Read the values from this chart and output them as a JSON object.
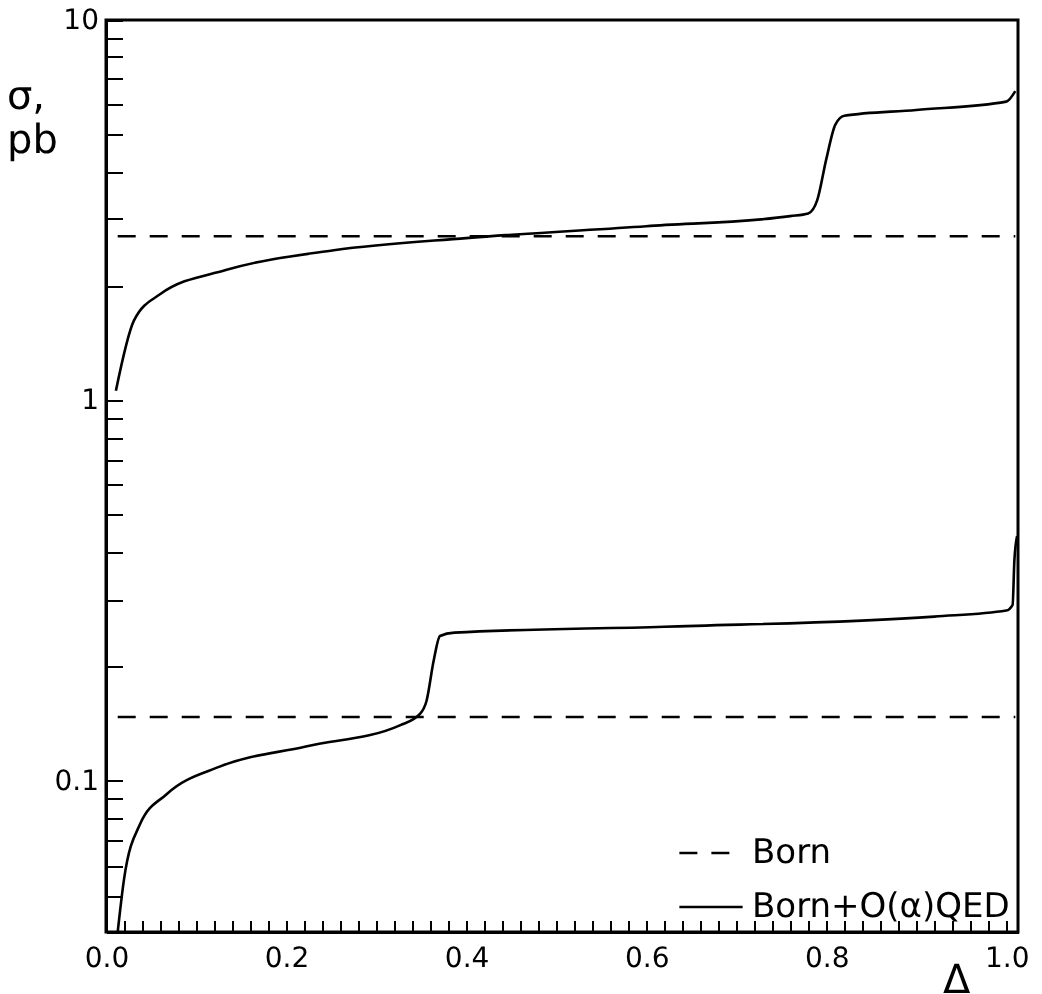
{
  "chart_data": {
    "type": "line",
    "xlabel": "Δ",
    "ylabel": "σ,\npb",
    "xlim": [
      0,
      1.013
    ],
    "ylim": [
      0.04,
      10
    ],
    "log": "y",
    "grid": false,
    "legend": "bottom right",
    "marker": "none",
    "xticks": [
      {
        "value": 0,
        "label": "0.0"
      },
      {
        "value": 0.02,
        "label": null
      },
      {
        "value": 0.04,
        "label": null
      },
      {
        "value": 0.06,
        "label": null
      },
      {
        "value": 0.08,
        "label": null
      },
      {
        "value": 0.1,
        "label": null
      },
      {
        "value": 0.12,
        "label": null
      },
      {
        "value": 0.14,
        "label": null
      },
      {
        "value": 0.16,
        "label": null
      },
      {
        "value": 0.18,
        "label": null
      },
      0.2,
      {
        "value": 0.22,
        "label": null
      },
      {
        "value": 0.24,
        "label": null
      },
      {
        "value": 0.26,
        "label": null
      },
      {
        "value": 0.28,
        "label": null
      },
      {
        "value": 0.3,
        "label": null
      },
      {
        "value": 0.32,
        "label": null
      },
      {
        "value": 0.34,
        "label": null
      },
      {
        "value": 0.36,
        "label": null
      },
      {
        "value": 0.38,
        "label": null
      },
      0.4,
      {
        "value": 0.42,
        "label": null
      },
      {
        "value": 0.44,
        "label": null
      },
      {
        "value": 0.46,
        "label": null
      },
      {
        "value": 0.48,
        "label": null
      },
      {
        "value": 0.5,
        "label": null
      },
      {
        "value": 0.52,
        "label": null
      },
      {
        "value": 0.54,
        "label": null
      },
      {
        "value": 0.56,
        "label": null
      },
      {
        "value": 0.58,
        "label": null
      },
      0.6,
      {
        "value": 0.62,
        "label": null
      },
      {
        "value": 0.64,
        "label": null
      },
      {
        "value": 0.66,
        "label": null
      },
      {
        "value": 0.68,
        "label": null
      },
      {
        "value": 0.7,
        "label": null
      },
      {
        "value": 0.72,
        "label": null
      },
      {
        "value": 0.74,
        "label": null
      },
      {
        "value": 0.76,
        "label": null
      },
      {
        "value": 0.78,
        "label": null
      },
      0.8,
      {
        "value": 0.82,
        "label": null
      },
      {
        "value": 0.84,
        "label": null
      },
      {
        "value": 0.86,
        "label": null
      },
      {
        "value": 0.88,
        "label": null
      },
      {
        "value": 0.9,
        "label": null
      },
      {
        "value": 0.92,
        "label": null
      },
      {
        "value": 0.94,
        "label": null
      },
      {
        "value": 0.96,
        "label": null
      },
      {
        "value": 0.98,
        "label": null
      },
      {
        "value": 1,
        "label": "1.0"
      }
    ],
    "yticks": [
      {
        "value": 0.05,
        "label": null
      },
      {
        "value": 0.06,
        "label": null
      },
      {
        "value": 0.07,
        "label": null
      },
      {
        "value": 0.08,
        "label": null
      },
      {
        "value": 0.09,
        "label": null
      },
      0.1,
      {
        "value": 0.2,
        "label": null
      },
      {
        "value": 0.3,
        "label": null
      },
      {
        "value": 0.4,
        "label": null
      },
      {
        "value": 0.5,
        "label": null
      },
      {
        "value": 0.6,
        "label": null
      },
      {
        "value": 0.7,
        "label": null
      },
      {
        "value": 0.8,
        "label": null
      },
      {
        "value": 0.9,
        "label": null
      },
      1,
      {
        "value": 2,
        "label": null
      },
      {
        "value": 3,
        "label": null
      },
      {
        "value": 4,
        "label": null
      },
      {
        "value": 5,
        "label": null
      },
      {
        "value": 6,
        "label": null
      },
      {
        "value": 7,
        "label": null
      },
      {
        "value": 8,
        "label": null
      },
      {
        "value": 9,
        "label": null
      },
      10
    ],
    "series": [
      {
        "name": "Born",
        "color": "#000000",
        "line_style": "dashed",
        "x": [
          0.013,
          1.01
        ],
        "values": [
          2.7,
          2.7
        ]
      },
      {
        "name": "Born+O(α)QED",
        "color": "#000000",
        "line_style": "solid",
        "x": [
          0.011,
          0.031,
          0.06,
          0.133,
          0.253,
          0.4,
          0.6,
          0.76,
          0.78,
          0.79,
          0.8,
          0.81,
          0.82,
          0.9,
          1.0,
          1.01
        ],
        "values": [
          1.06,
          1.62,
          1.9,
          2.2,
          2.48,
          2.67,
          2.87,
          3.05,
          3.1,
          3.36,
          4.3,
          5.3,
          5.6,
          5.8,
          6.1,
          6.5
        ]
      },
      {
        "color": "#000000",
        "line_style": "dashed",
        "x": [
          0.013,
          1.01
        ],
        "values": [
          0.147,
          0.147
        ]
      },
      {
        "color": "#000000",
        "line_style": "solid",
        "x": [
          0.013,
          0.02,
          0.038,
          0.067,
          0.127,
          0.222,
          0.327,
          0.349,
          0.356,
          0.364,
          0.371,
          0.387,
          0.62,
          0.92,
          1.0,
          1.007,
          1.009,
          1.012
        ],
        "values": [
          0.04,
          0.055,
          0.077,
          0.092,
          0.109,
          0.123,
          0.14,
          0.15,
          0.162,
          0.207,
          0.24,
          0.245,
          0.254,
          0.27,
          0.28,
          0.29,
          0.38,
          0.44
        ]
      }
    ]
  }
}
